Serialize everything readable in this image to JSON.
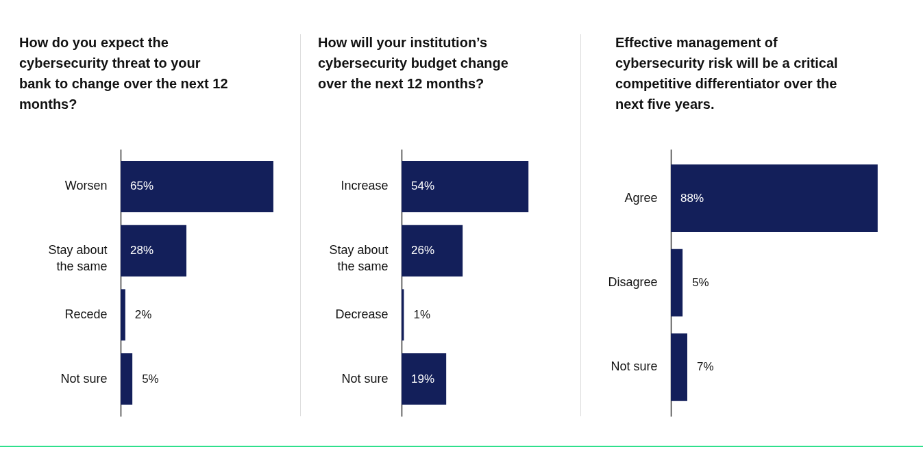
{
  "chart_data": [
    {
      "type": "bar",
      "orientation": "horizontal",
      "title": "How do you expect the cybersecurity threat to your bank to change over the next 12 months?",
      "categories": [
        "Worsen",
        "Stay about the same",
        "Recede",
        "Not sure"
      ],
      "values": [
        65,
        28,
        2,
        5
      ],
      "color": "#131f5a",
      "value_labels": [
        "65%",
        "28%",
        "2%",
        "5%"
      ]
    },
    {
      "type": "bar",
      "orientation": "horizontal",
      "title": "How will your institution’s cybersecurity budget change over the next 12 months?",
      "categories": [
        "Increase",
        "Stay about the same",
        "Decrease",
        "Not sure"
      ],
      "values": [
        54,
        26,
        1,
        19
      ],
      "color": "#131f5a",
      "value_labels": [
        "54%",
        "26%",
        "1%",
        "19%"
      ]
    },
    {
      "type": "bar",
      "orientation": "horizontal",
      "title": "Effective management of cybersecurity risk will be a critical competitive differentiator over the next five years.",
      "categories": [
        "Agree",
        "Disagree",
        "Not sure"
      ],
      "values": [
        88,
        5,
        7
      ],
      "color": "#131f5a",
      "value_labels": [
        "88%",
        "5%",
        "7%"
      ]
    }
  ]
}
